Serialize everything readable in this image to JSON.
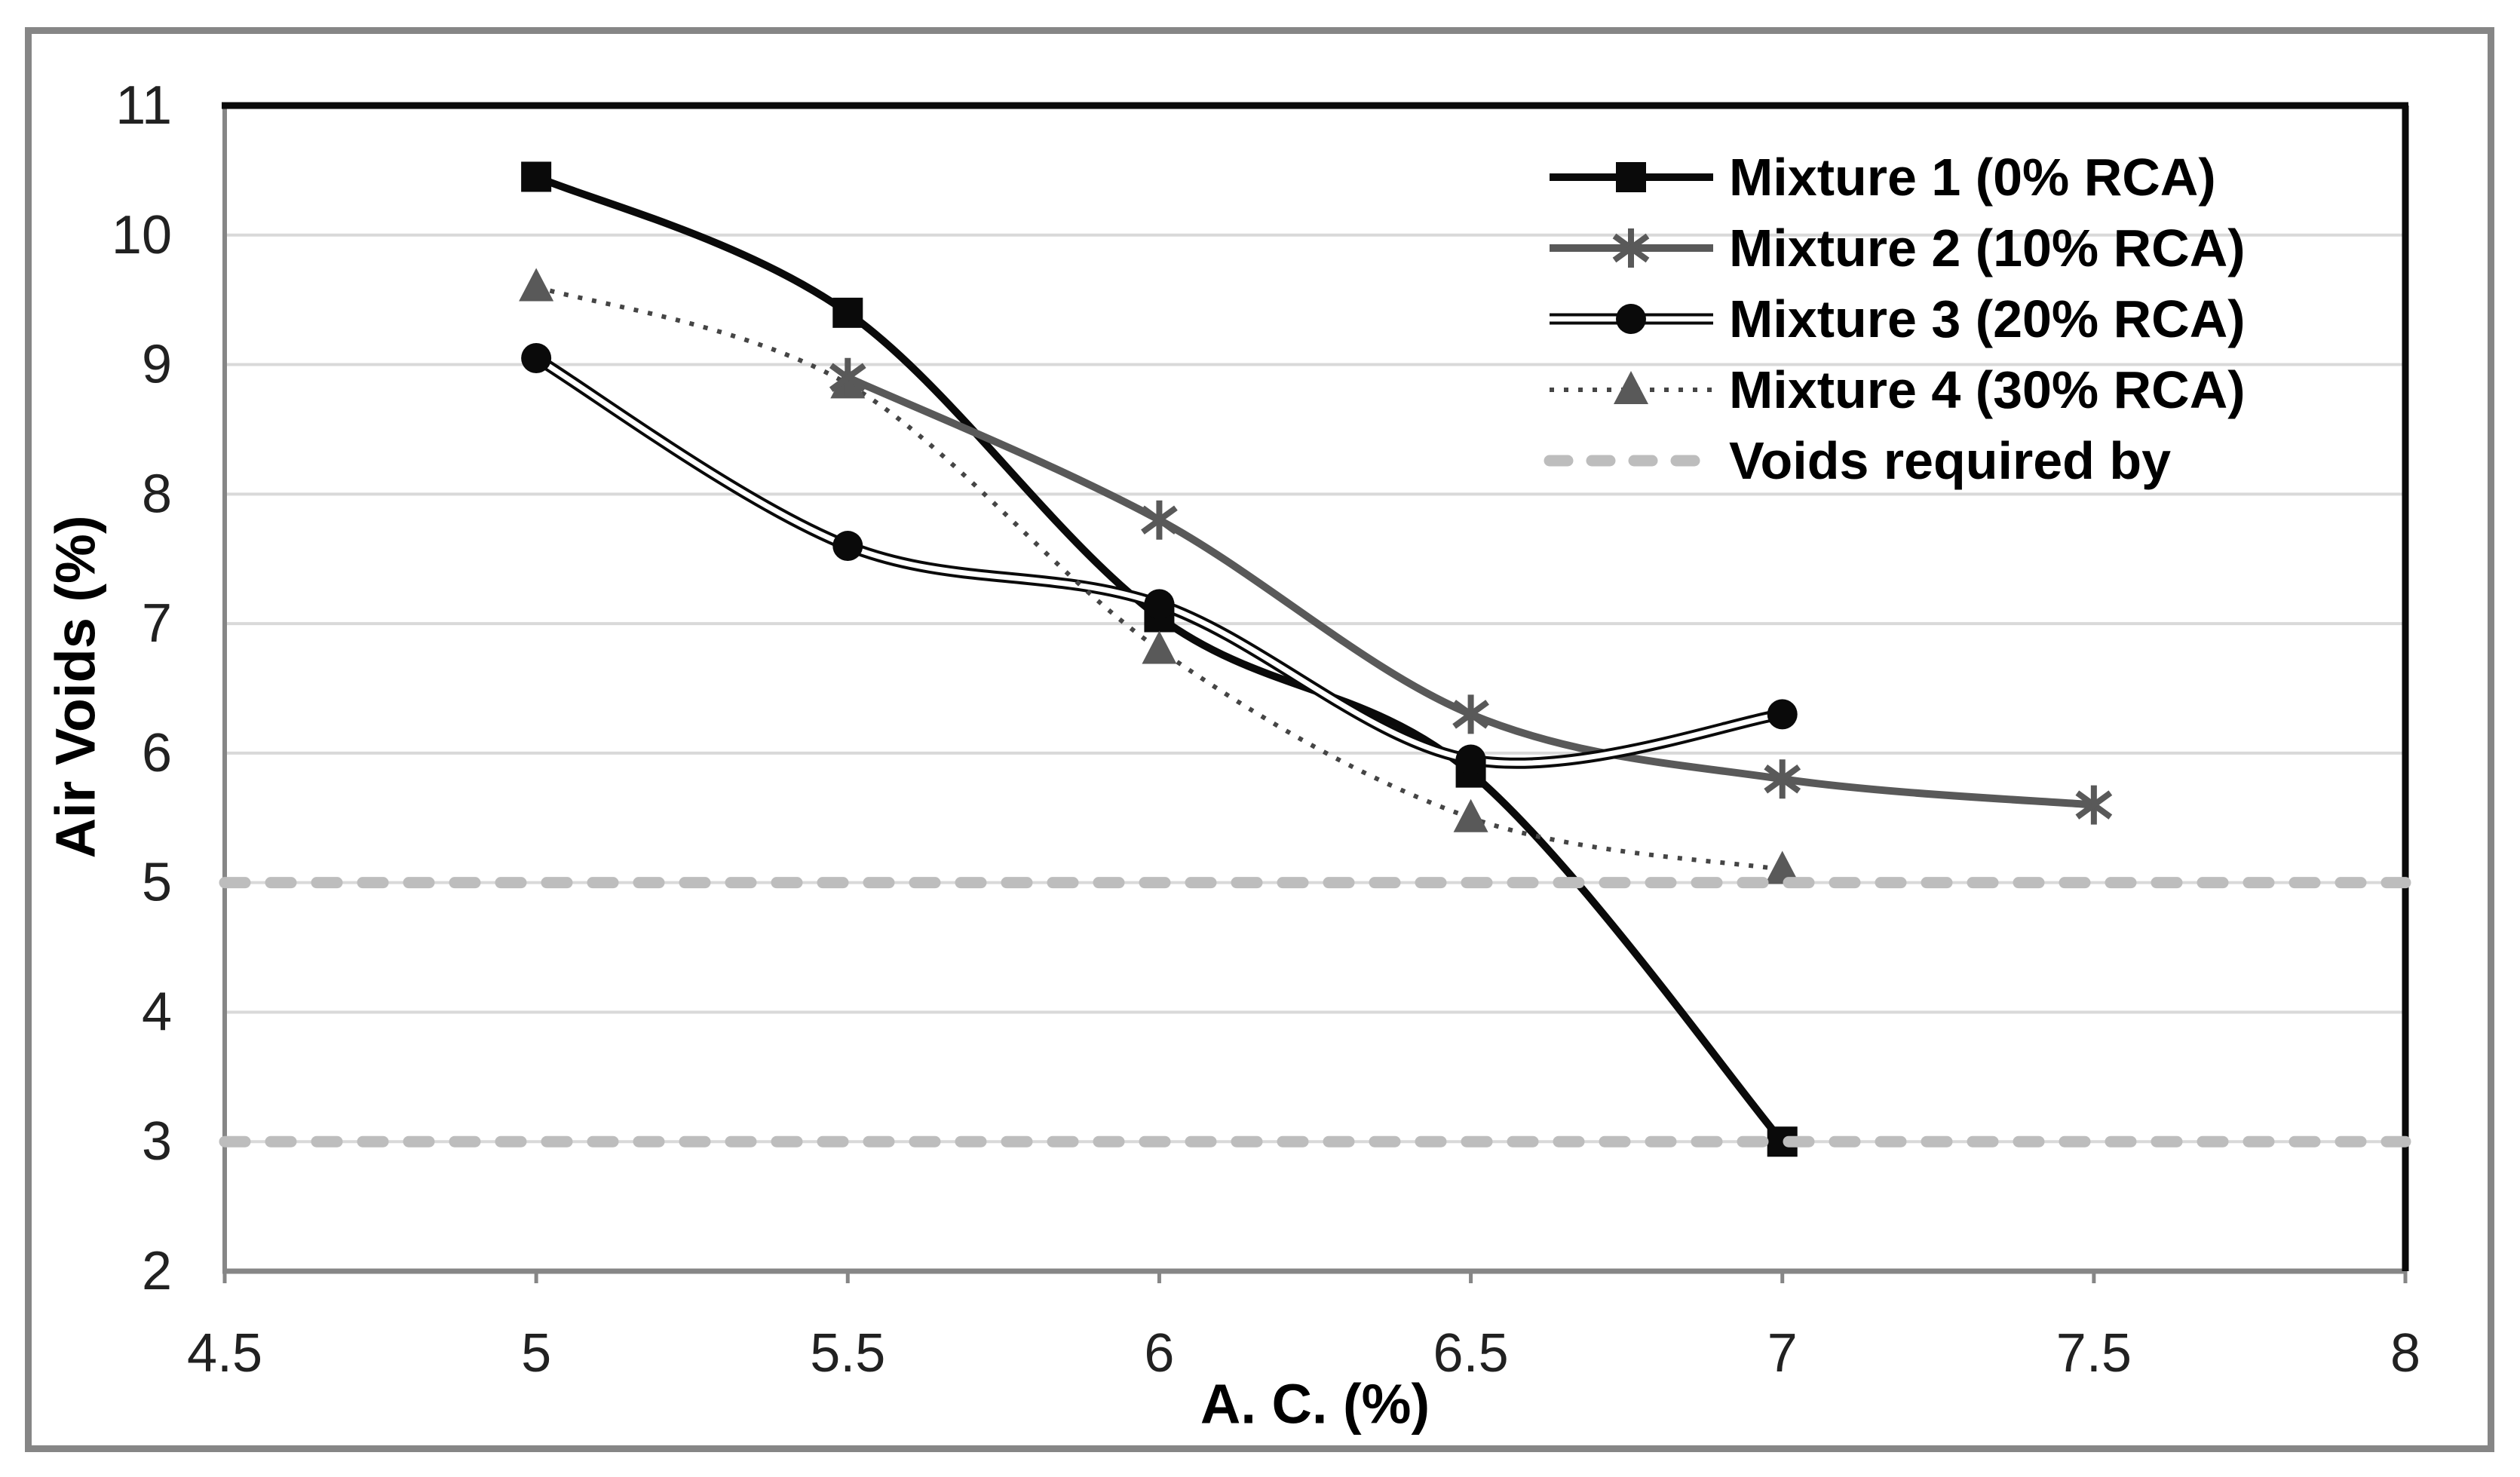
{
  "chart_data": {
    "type": "line",
    "title": "",
    "xlabel": "A. C. (%)",
    "ylabel": "Air Voids (%)",
    "xlim": [
      4.5,
      8
    ],
    "ylim": [
      2,
      11
    ],
    "xticks": [
      "4.5",
      "5",
      "5.5",
      "6",
      "6.5",
      "7",
      "7.5",
      "8"
    ],
    "yticks": [
      "2",
      "3",
      "4",
      "5",
      "6",
      "7",
      "8",
      "9",
      "10",
      "11"
    ],
    "grid": "horizontal",
    "legend_position": "top-right-inside",
    "series": [
      {
        "name": "Mixture 1 (0% RCA)",
        "marker": "square",
        "line_style": "solid",
        "color": "#0a0a0a",
        "x": [
          5,
          5.5,
          6,
          6.5,
          7
        ],
        "y": [
          10.45,
          9.4,
          7.05,
          5.85,
          3.0
        ]
      },
      {
        "name": "Mixture 2 (10% RCA)",
        "marker": "asterisk",
        "line_style": "solid",
        "color": "#595959",
        "x": [
          5.5,
          6,
          6.5,
          7,
          7.5
        ],
        "y": [
          8.9,
          7.8,
          6.3,
          5.8,
          5.6
        ]
      },
      {
        "name": "Mixture 3 (20% RCA)",
        "marker": "circle",
        "line_style": "double",
        "color": "#0a0a0a",
        "x": [
          5,
          5.5,
          6,
          6.5,
          7
        ],
        "y": [
          9.05,
          7.6,
          7.15,
          5.95,
          6.3
        ]
      },
      {
        "name": "Mixture 4 (30% RCA)",
        "marker": "triangle",
        "line_style": "dotted",
        "color": "#595959",
        "line_color": "#454545",
        "x": [
          5,
          5.5,
          6,
          6.5,
          7
        ],
        "y": [
          9.6,
          8.85,
          6.8,
          5.5,
          5.1
        ]
      }
    ],
    "reference_lines": {
      "name": "Voids required by",
      "style": "dashed",
      "color": "#bdbdbd",
      "y_values": [
        5,
        3
      ]
    },
    "colors": {
      "grid": "#d9d9d9",
      "axis": "#868686",
      "plot_border": "#0a0a0a",
      "tick_text": "#212121",
      "frame": "#868686",
      "background": "#ffffff"
    }
  }
}
